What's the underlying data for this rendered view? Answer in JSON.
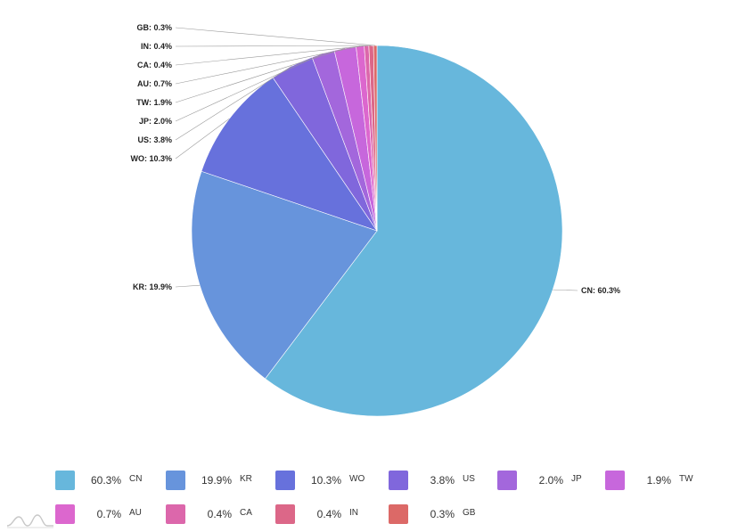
{
  "chart_data": {
    "type": "pie",
    "slices": [
      {
        "name": "CN",
        "value": 60.3,
        "label": "CN: 60.3%",
        "legend_value": "60.3%",
        "color": "#67b7dc"
      },
      {
        "name": "KR",
        "value": 19.9,
        "label": "KR: 19.9%",
        "legend_value": "19.9%",
        "color": "#6794dc"
      },
      {
        "name": "WO",
        "value": 10.3,
        "label": "WO: 10.3%",
        "legend_value": "10.3%",
        "color": "#6771dc"
      },
      {
        "name": "US",
        "value": 3.8,
        "label": "US: 3.8%",
        "legend_value": "3.8%",
        "color": "#8067dc"
      },
      {
        "name": "JP",
        "value": 2.0,
        "label": "JP: 2.0%",
        "legend_value": "2.0%",
        "color": "#a367dc"
      },
      {
        "name": "TW",
        "value": 1.9,
        "label": "TW: 1.9%",
        "legend_value": "1.9%",
        "color": "#c767dc"
      },
      {
        "name": "AU",
        "value": 0.7,
        "label": "AU: 0.7%",
        "legend_value": "0.7%",
        "color": "#dc67ce"
      },
      {
        "name": "CA",
        "value": 0.4,
        "label": "CA: 0.4%",
        "legend_value": "0.4%",
        "color": "#dc67ab"
      },
      {
        "name": "IN",
        "value": 0.4,
        "label": "IN: 0.4%",
        "legend_value": "0.4%",
        "color": "#dc6788"
      },
      {
        "name": "GB",
        "value": 0.3,
        "label": "GB: 0.3%",
        "legend_value": "0.3%",
        "color": "#dc6967"
      }
    ],
    "legend_position": "bottom",
    "start_angle": "top",
    "direction": "clockwise"
  }
}
